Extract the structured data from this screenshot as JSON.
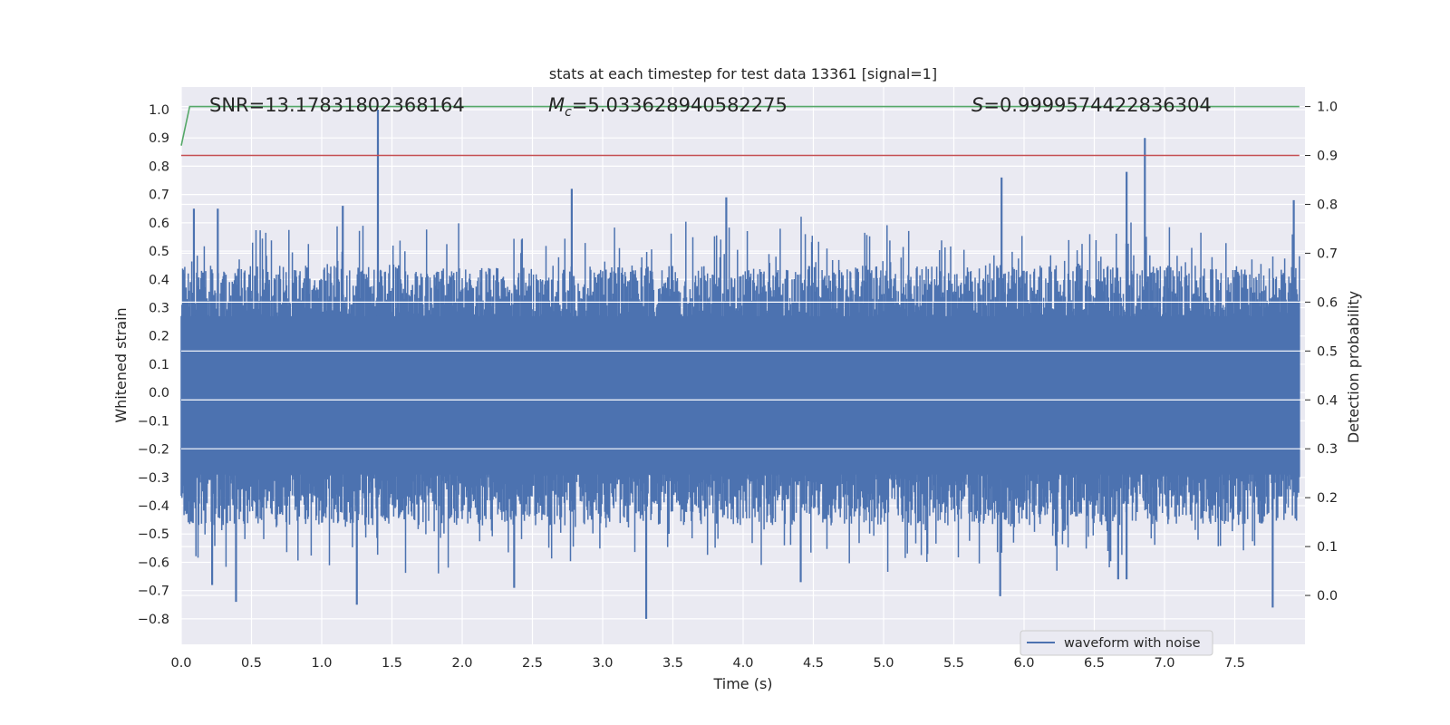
{
  "chart_data": {
    "type": "line",
    "title": "stats at each timestep for test data 13361 [signal=1]",
    "xlabel": "Time (s)",
    "ylabel_left": "Whitened strain",
    "ylabel_right": "Detection probability",
    "xlim": [
      0.0,
      8.0
    ],
    "ylim_left": [
      -0.89,
      1.08
    ],
    "ylim_right": [
      -0.1,
      1.04
    ],
    "x_ticks": [
      "0.0",
      "0.5",
      "1.0",
      "1.5",
      "2.0",
      "2.5",
      "3.0",
      "3.5",
      "4.0",
      "4.5",
      "5.0",
      "5.5",
      "6.0",
      "6.5",
      "7.0",
      "7.5"
    ],
    "y_left_ticks": [
      "-0.8",
      "-0.7",
      "-0.6",
      "-0.5",
      "-0.4",
      "-0.3",
      "-0.2",
      "-0.1",
      "0.0",
      "0.1",
      "0.2",
      "0.3",
      "0.4",
      "0.5",
      "0.6",
      "0.7",
      "0.8",
      "0.9",
      "1.0"
    ],
    "y_right_ticks": [
      "0.0",
      "0.1",
      "0.2",
      "0.3",
      "0.4",
      "0.5",
      "0.6",
      "0.7",
      "0.8",
      "0.9",
      "1.0"
    ],
    "grid": true,
    "legend": {
      "location": "lower-right",
      "entries": [
        "waveform with noise"
      ]
    },
    "annotations": {
      "snr_name": "SNR",
      "snr_value": "=13.17831802368164",
      "mc_name": "M",
      "mc_sub": "c",
      "mc_value": "=5.033628940582275",
      "s_name": "S",
      "s_value": "=0.9999574422836304"
    },
    "series": [
      {
        "name": "waveform with noise",
        "axis": "left",
        "color": "#4c72b0",
        "description": "noisy whitened strain, roughly within ±0.45 with sparse spikes",
        "peaks": [
          {
            "t": 1.4,
            "v": 1.0
          },
          {
            "t": 6.86,
            "v": 0.9
          },
          {
            "t": 2.78,
            "v": 0.72
          },
          {
            "t": 5.84,
            "v": 0.76
          },
          {
            "t": 3.88,
            "v": 0.69
          },
          {
            "t": 6.73,
            "v": 0.78
          },
          {
            "t": 7.92,
            "v": 0.68
          },
          {
            "t": 0.09,
            "v": 0.65
          },
          {
            "t": 0.26,
            "v": 0.65
          },
          {
            "t": 1.15,
            "v": 0.66
          },
          {
            "t": 3.31,
            "v": -0.8
          },
          {
            "t": 0.39,
            "v": -0.74
          },
          {
            "t": 1.25,
            "v": -0.75
          },
          {
            "t": 7.77,
            "v": -0.76
          },
          {
            "t": 5.83,
            "v": -0.72
          },
          {
            "t": 2.37,
            "v": -0.69
          },
          {
            "t": 0.22,
            "v": -0.68
          },
          {
            "t": 4.41,
            "v": -0.67
          },
          {
            "t": 6.73,
            "v": -0.66
          },
          {
            "t": 6.67,
            "v": -0.66
          }
        ]
      },
      {
        "name": "detection probability",
        "axis": "right",
        "color": "#55a868",
        "x": [
          0.0,
          0.06,
          0.07,
          7.96
        ],
        "y": [
          0.92,
          1.0,
          1.0,
          1.0
        ]
      },
      {
        "name": "threshold",
        "axis": "right",
        "color": "#c44e52",
        "x": [
          0.0,
          7.96
        ],
        "y": [
          0.9,
          0.9
        ]
      }
    ]
  }
}
